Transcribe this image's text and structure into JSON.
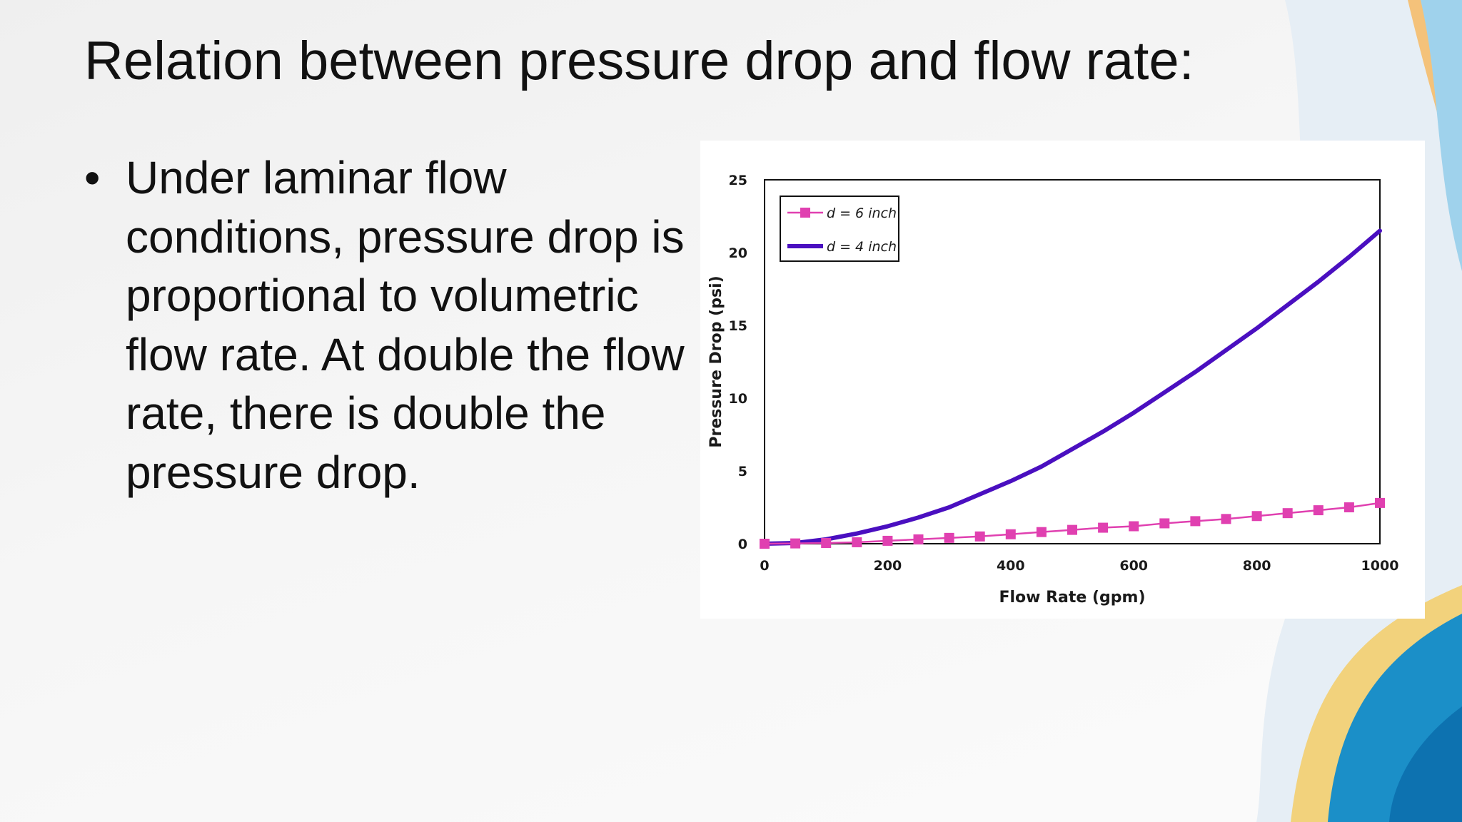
{
  "slide": {
    "title": "Relation between pressure drop and flow rate:",
    "bullets": [
      "Under laminar flow conditions, pressure drop is proportional to volumetric flow rate. At double the flow rate, there is double the pressure drop."
    ],
    "bullet_symbol": "•"
  },
  "colors": {
    "series_6inch": "#e040b0",
    "series_4inch": "#4a0fc0"
  },
  "chart_data": {
    "type": "line",
    "xlabel": "Flow Rate (gpm)",
    "ylabel": "Pressure Drop (psi)",
    "xlim": [
      0,
      1000
    ],
    "ylim": [
      0,
      25
    ],
    "xticks": [
      "0",
      "200",
      "400",
      "600",
      "800",
      "1000"
    ],
    "yticks": [
      "0",
      "5",
      "10",
      "15",
      "20",
      "25"
    ],
    "grid": false,
    "legend_position": "top-left",
    "series": [
      {
        "name": "d = 6 inch",
        "marker": "square",
        "x": [
          0,
          50,
          100,
          150,
          200,
          250,
          300,
          350,
          400,
          450,
          500,
          550,
          600,
          650,
          700,
          750,
          800,
          850,
          900,
          950,
          1000
        ],
        "y": [
          0,
          0.02,
          0.05,
          0.1,
          0.2,
          0.3,
          0.4,
          0.5,
          0.65,
          0.8,
          0.95,
          1.1,
          1.2,
          1.4,
          1.55,
          1.7,
          1.9,
          2.1,
          2.3,
          2.5,
          2.8
        ]
      },
      {
        "name": "d = 4 inch",
        "marker": "none",
        "x": [
          0,
          50,
          100,
          150,
          200,
          250,
          300,
          350,
          400,
          450,
          500,
          550,
          600,
          650,
          700,
          750,
          800,
          850,
          900,
          950,
          1000
        ],
        "y": [
          0,
          0.05,
          0.3,
          0.7,
          1.2,
          1.8,
          2.5,
          3.4,
          4.3,
          5.3,
          6.5,
          7.7,
          9.0,
          10.4,
          11.8,
          13.3,
          14.8,
          16.4,
          18.0,
          19.7,
          21.5
        ]
      }
    ]
  }
}
